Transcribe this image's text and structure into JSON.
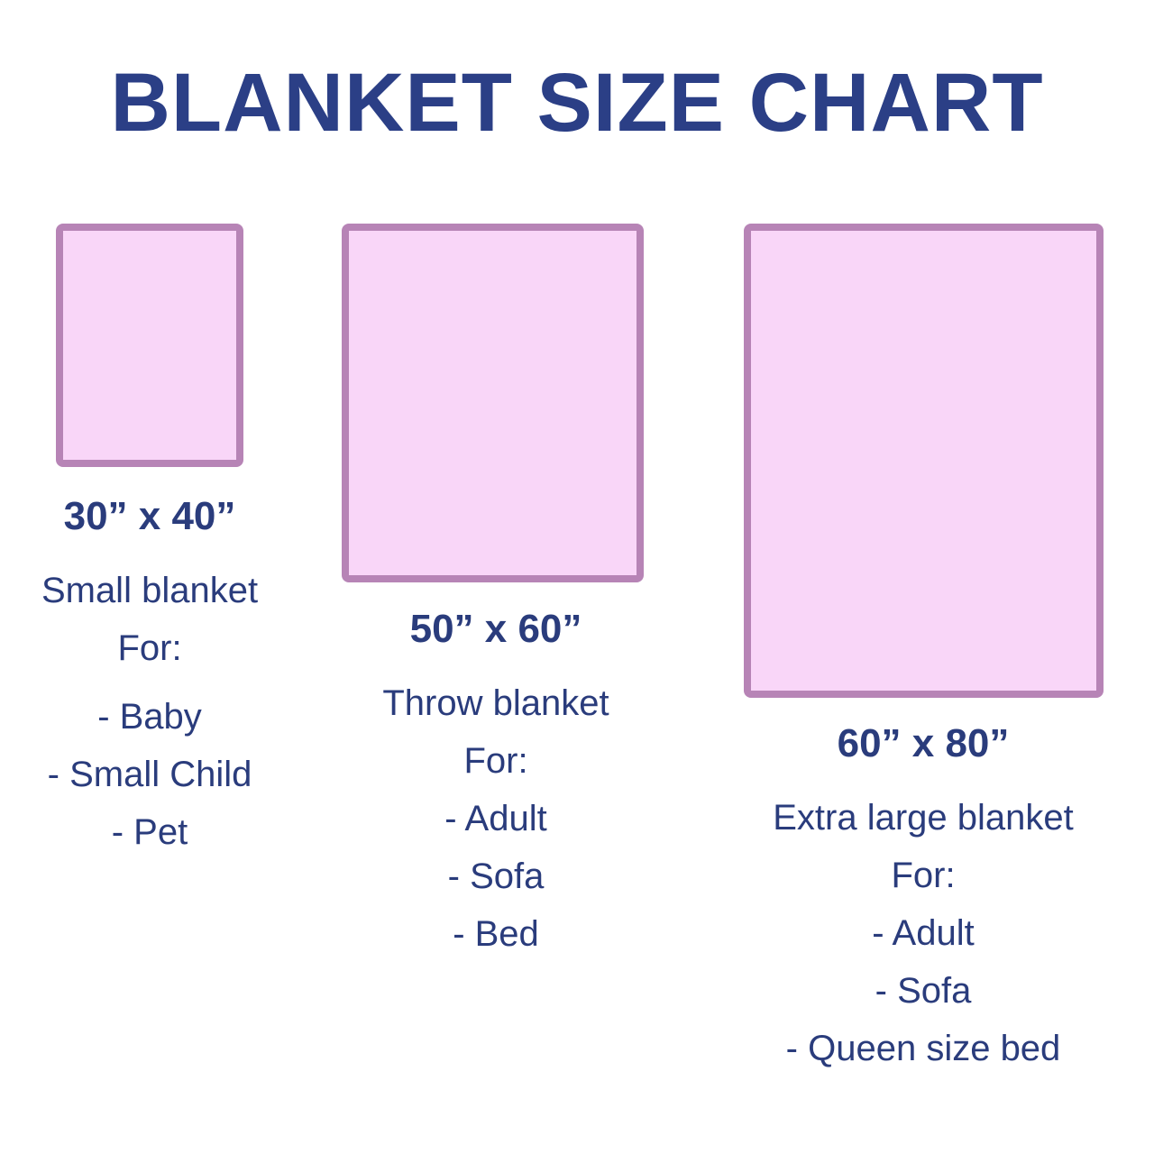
{
  "title": "BLANKET SIZE CHART",
  "colors": {
    "text": "#2a3c7c",
    "box_border": "#b784b6",
    "box_fill": "#f9d6f8"
  },
  "blankets": [
    {
      "size": "30” x 40”",
      "name": "Small blanket",
      "for_label": "For:",
      "uses": [
        "- Baby",
        "- Small Child",
        "- Pet"
      ]
    },
    {
      "size": "50” x 60”",
      "name": "Throw blanket",
      "for_label": "For:",
      "uses": [
        "- Adult",
        "- Sofa",
        "- Bed"
      ]
    },
    {
      "size": "60” x 80”",
      "name": "Extra large blanket",
      "for_label": "For:",
      "uses": [
        "- Adult",
        "- Sofa",
        "- Queen size bed"
      ]
    }
  ]
}
